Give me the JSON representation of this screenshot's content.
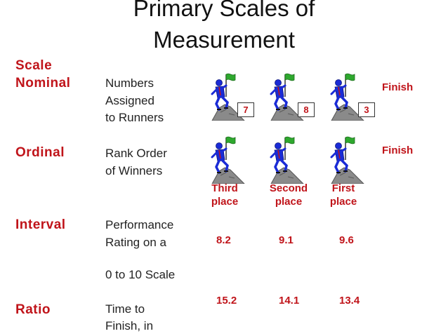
{
  "title": {
    "line1": "Primary Scales of",
    "line2": "Measurement"
  },
  "scales": {
    "scale_heading": "Scale",
    "nominal": {
      "label": "Nominal",
      "desc": [
        "Numbers",
        "Assigned",
        "to Runners"
      ]
    },
    "ordinal": {
      "label": "Ordinal",
      "desc": [
        "Rank Order",
        "of Winners"
      ]
    },
    "interval": {
      "label": "Interval",
      "desc": [
        "Performance",
        "Rating on a",
        "0 to 10 Scale"
      ]
    },
    "ratio": {
      "label": "Ratio",
      "desc": [
        "Time to",
        "Finish, in"
      ]
    }
  },
  "nominal_numbers": [
    "7",
    "8",
    "3"
  ],
  "finish_label": "Finish",
  "places": [
    {
      "line1": "Third",
      "line2": "place"
    },
    {
      "line1": "Second",
      "line2": "place"
    },
    {
      "line1": "First",
      "line2": "place"
    }
  ],
  "interval_values": [
    "8.2",
    "9.1",
    "9.6"
  ],
  "ratio_values": [
    "15.2",
    "14.1",
    "13.4"
  ],
  "colors": {
    "accent_red": "#c0141a",
    "flag_green": "#2ea82e",
    "climber_blue": "#1a2bd6",
    "rock_gray": "#8a8a8a"
  },
  "icons": [
    "climber-with-flag-icon"
  ]
}
